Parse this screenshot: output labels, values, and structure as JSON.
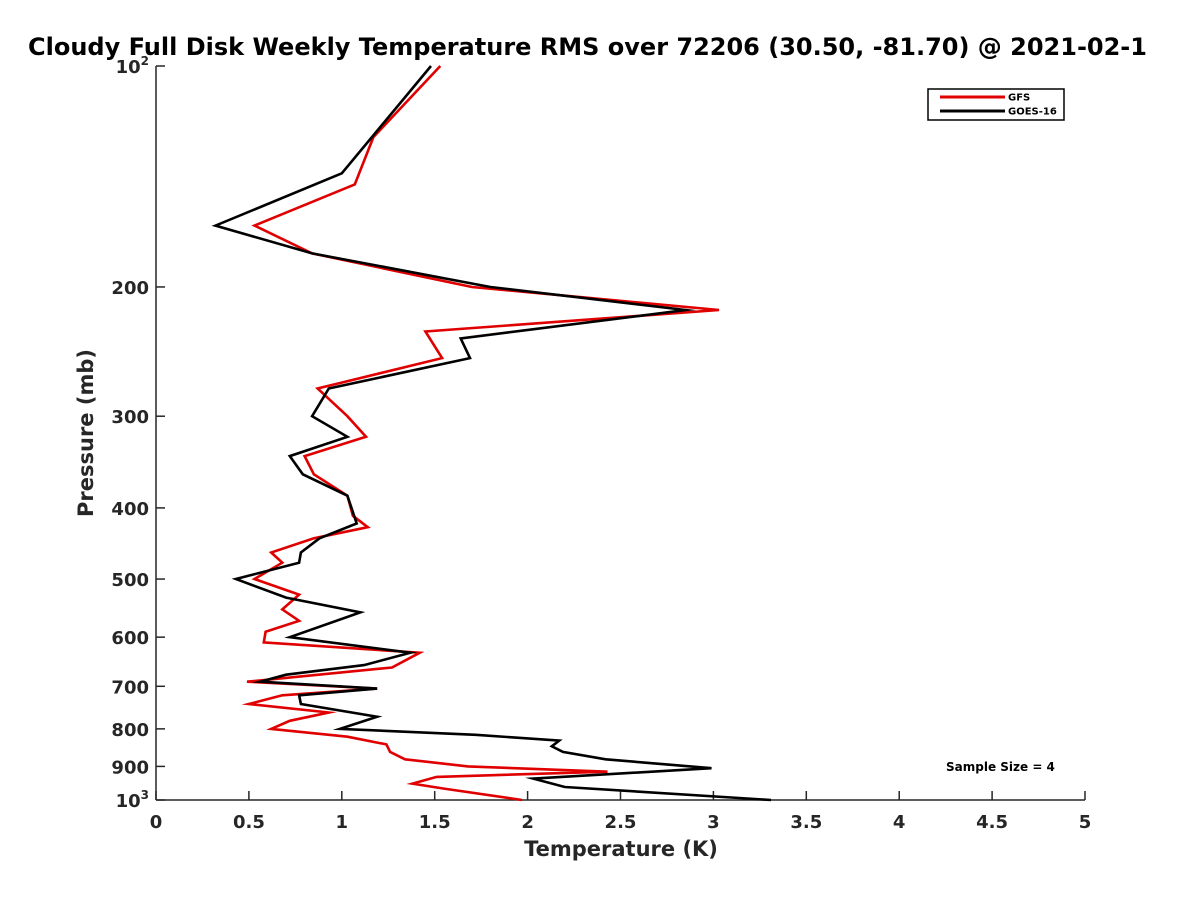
{
  "chart_data": {
    "type": "line",
    "title": "Cloudy Full Disk Weekly Temperature RMS over 72206 (30.50, -81.70) @ 2021-02-1",
    "xlabel": "Temperature (K)",
    "ylabel": "Pressure (mb)",
    "xlim": [
      0,
      5
    ],
    "ylim": [
      100,
      1000
    ],
    "y_scale": "log",
    "y_reversed": true,
    "x_ticks": [
      "0",
      "0.5",
      "1",
      "1.5",
      "2",
      "2.5",
      "3",
      "3.5",
      "4",
      "4.5",
      "5"
    ],
    "y_ticks": [
      {
        "value": 100,
        "base": "10",
        "exp": "2"
      },
      {
        "value": 200,
        "label": "200"
      },
      {
        "value": 300,
        "label": "300"
      },
      {
        "value": 400,
        "label": "400"
      },
      {
        "value": 500,
        "label": "500"
      },
      {
        "value": 600,
        "label": "600"
      },
      {
        "value": 700,
        "label": "700"
      },
      {
        "value": 800,
        "label": "800"
      },
      {
        "value": 900,
        "label": "900"
      },
      {
        "value": 1000,
        "base": "10",
        "exp": "3"
      }
    ],
    "legend_position": "top-right",
    "grid": false,
    "annotation": "Sample Size = 4",
    "series": [
      {
        "name": "GFS",
        "color": "#e00000",
        "points": [
          [
            1.53,
            100
          ],
          [
            1.17,
            125
          ],
          [
            1.07,
            145
          ],
          [
            0.53,
            165
          ],
          [
            0.84,
            180
          ],
          [
            1.7,
            200
          ],
          [
            3.03,
            215
          ],
          [
            1.45,
            230
          ],
          [
            1.54,
            250
          ],
          [
            0.87,
            275
          ],
          [
            1.03,
            300
          ],
          [
            1.13,
            320
          ],
          [
            0.8,
            340
          ],
          [
            0.85,
            360
          ],
          [
            1.03,
            385
          ],
          [
            1.06,
            410
          ],
          [
            1.14,
            425
          ],
          [
            0.85,
            440
          ],
          [
            0.62,
            460
          ],
          [
            0.68,
            475
          ],
          [
            0.53,
            500
          ],
          [
            0.77,
            525
          ],
          [
            0.68,
            550
          ],
          [
            0.77,
            570
          ],
          [
            0.59,
            590
          ],
          [
            0.58,
            610
          ],
          [
            1.42,
            630
          ],
          [
            1.27,
            660
          ],
          [
            0.49,
            690
          ],
          [
            1.19,
            705
          ],
          [
            0.68,
            720
          ],
          [
            0.5,
            740
          ],
          [
            0.93,
            760
          ],
          [
            0.72,
            780
          ],
          [
            0.62,
            800
          ],
          [
            1.03,
            820
          ],
          [
            1.24,
            840
          ],
          [
            1.26,
            860
          ],
          [
            1.34,
            880
          ],
          [
            1.68,
            900
          ],
          [
            2.43,
            915
          ],
          [
            1.51,
            930
          ],
          [
            1.38,
            950
          ],
          [
            1.55,
            965
          ],
          [
            1.97,
            1000
          ]
        ]
      },
      {
        "name": "GOES-16",
        "color": "#000000",
        "points": [
          [
            1.48,
            100
          ],
          [
            1.0,
            140
          ],
          [
            0.32,
            165
          ],
          [
            0.84,
            180
          ],
          [
            1.8,
            200
          ],
          [
            2.85,
            215
          ],
          [
            1.64,
            235
          ],
          [
            1.69,
            250
          ],
          [
            0.93,
            275
          ],
          [
            0.84,
            300
          ],
          [
            1.03,
            320
          ],
          [
            0.72,
            340
          ],
          [
            0.79,
            360
          ],
          [
            1.03,
            385
          ],
          [
            1.08,
            420
          ],
          [
            0.88,
            440
          ],
          [
            0.78,
            460
          ],
          [
            0.77,
            475
          ],
          [
            0.43,
            500
          ],
          [
            0.7,
            530
          ],
          [
            1.1,
            555
          ],
          [
            0.72,
            600
          ],
          [
            1.37,
            630
          ],
          [
            1.12,
            655
          ],
          [
            0.7,
            675
          ],
          [
            0.56,
            690
          ],
          [
            1.19,
            705
          ],
          [
            0.77,
            720
          ],
          [
            0.78,
            740
          ],
          [
            1.19,
            770
          ],
          [
            0.99,
            800
          ],
          [
            1.72,
            815
          ],
          [
            2.17,
            830
          ],
          [
            2.13,
            845
          ],
          [
            2.19,
            860
          ],
          [
            2.42,
            880
          ],
          [
            2.99,
            905
          ],
          [
            2.03,
            935
          ],
          [
            2.2,
            960
          ],
          [
            3.31,
            1000
          ]
        ]
      }
    ]
  }
}
